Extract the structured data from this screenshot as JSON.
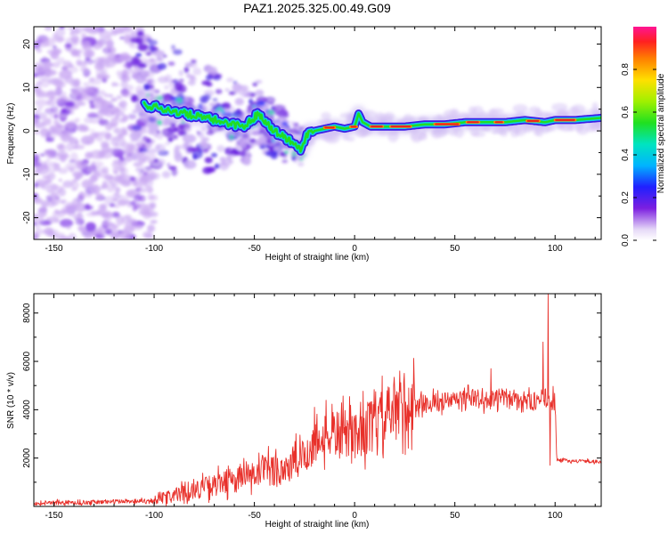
{
  "title": "PAZ1.2025.325.00.49.G09",
  "chart_data": [
    {
      "type": "heatmap",
      "xlabel": "Height of straight line (km)",
      "ylabel": "Frequency (Hz)",
      "xlim": [
        -160,
        123
      ],
      "ylim": [
        -25,
        24
      ],
      "xticks": [
        -150,
        -100,
        -50,
        0,
        50,
        100
      ],
      "yticks": [
        -20,
        -10,
        0,
        10,
        20
      ],
      "colorbar": {
        "label": "Normalized spectral amplitude",
        "range": [
          0,
          1
        ],
        "ticks": [
          0.0,
          0.2,
          0.4,
          0.6,
          0.8
        ]
      },
      "ridge": {
        "x": [
          -105,
          -95,
          -85,
          -75,
          -65,
          -55,
          -48,
          -40,
          -33,
          -27,
          -24,
          -20,
          -15,
          -10,
          -5,
          0,
          2,
          4,
          8,
          15,
          25,
          35,
          45,
          55,
          65,
          75,
          85,
          95,
          100,
          110,
          123
        ],
        "y": [
          6,
          5,
          4,
          3,
          2,
          1,
          4,
          0,
          -2,
          -4,
          -1,
          0,
          0.5,
          1,
          0.5,
          1,
          4,
          2,
          1,
          1,
          1,
          1.5,
          1.5,
          2,
          2,
          2,
          2.5,
          2,
          2.5,
          2.5,
          3
        ]
      }
    },
    {
      "type": "line",
      "xlabel": "Height of straight line (km)",
      "ylabel": "SNR (10 * v/v)",
      "xlim": [
        -160,
        123
      ],
      "ylim": [
        0,
        8800
      ],
      "xticks": [
        -150,
        -100,
        -50,
        0,
        50,
        100
      ],
      "yticks": [
        2000,
        4000,
        6000,
        8000
      ],
      "series": [
        {
          "name": "SNR",
          "color": "#e8302a",
          "x": [
            -160,
            -140,
            -120,
            -100,
            -90,
            -80,
            -70,
            -60,
            -50,
            -40,
            -30,
            -25,
            -20,
            -15,
            -10,
            -5,
            0,
            5,
            10,
            15,
            20,
            25,
            30,
            40,
            50,
            60,
            65,
            68,
            70,
            80,
            88,
            92,
            95,
            97,
            98,
            99,
            100,
            101,
            105,
            110,
            115,
            123
          ],
          "y": [
            150,
            150,
            200,
            250,
            450,
            700,
            900,
            1100,
            1300,
            1500,
            1700,
            2100,
            2600,
            2900,
            3000,
            3000,
            3000,
            3200,
            3400,
            3700,
            3900,
            4100,
            4200,
            4300,
            4400,
            4500,
            4400,
            4350,
            4500,
            4500,
            4300,
            4400,
            4500,
            4400,
            4300,
            4400,
            4300,
            1900,
            1900,
            1880,
            1870,
            1850
          ]
        }
      ],
      "spikes": {
        "x": [
          -20,
          68,
          94,
          96.5,
          97.5
        ],
        "y": [
          4100,
          5700,
          6800,
          8800,
          1700
        ]
      }
    }
  ]
}
